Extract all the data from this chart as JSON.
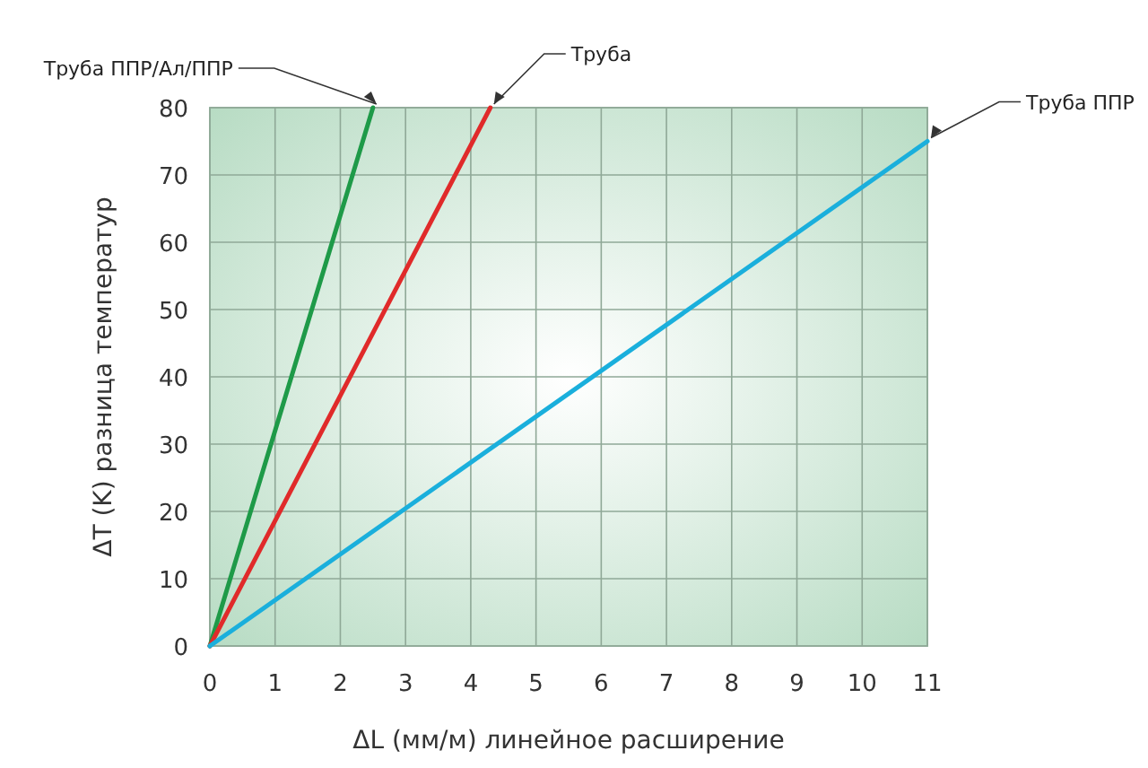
{
  "chart_data": {
    "type": "line",
    "xlabel": "ΔL (мм/м) линейное расширение",
    "ylabel": "ΔT (K) разница температур",
    "xlim": [
      0,
      11
    ],
    "ylim": [
      0,
      80
    ],
    "xticks": [
      0,
      1,
      2,
      3,
      4,
      5,
      6,
      7,
      8,
      9,
      10,
      11
    ],
    "yticks": [
      0,
      10,
      20,
      30,
      40,
      50,
      60,
      70,
      80
    ],
    "grid": true,
    "series": [
      {
        "name": "Труба ППР/Ал/ППР",
        "color": "#1e9a48",
        "x": [
          0,
          2.5
        ],
        "values": [
          0,
          80
        ]
      },
      {
        "name": "Труба",
        "color": "#e02a2a",
        "x": [
          0,
          4.3
        ],
        "values": [
          0,
          80
        ]
      },
      {
        "name": "Труба ППР",
        "color": "#1aafdc",
        "x": [
          0,
          11
        ],
        "values": [
          0,
          75
        ]
      }
    ]
  }
}
